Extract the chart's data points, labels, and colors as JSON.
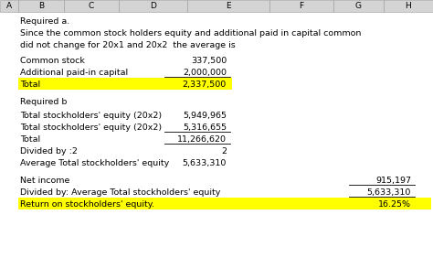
{
  "title_a": "Required a.",
  "subtitle_line1": "Since the common stock holders equity and additional paid in capital common",
  "subtitle_line2": "did not change for 20x1 and 20x2  the average is",
  "title_b": "Required b",
  "section_a_rows": [
    {
      "label": "Common stock",
      "value": "337,500",
      "highlight": false,
      "underline": false
    },
    {
      "label": "Additional paid-in capital",
      "value": "2,000,000",
      "highlight": false,
      "underline": true
    },
    {
      "label": "Total",
      "value": "2,337,500",
      "highlight": true,
      "underline": false
    }
  ],
  "section_b_rows": [
    {
      "label": "Total stockholders' equity (20x2)",
      "value": "5,949,965",
      "highlight": false,
      "underline": false
    },
    {
      "label": "Total stockholders' equity (20x2)",
      "value": "5,316,655",
      "highlight": false,
      "underline": true
    },
    {
      "label": "Total",
      "value": "11,266,620",
      "highlight": false,
      "underline": true
    },
    {
      "label": "Divided by :2",
      "value": "2",
      "highlight": false,
      "underline": false
    },
    {
      "label": "Average Total stockholders' equity",
      "value": "5,633,310",
      "highlight": false,
      "underline": false
    }
  ],
  "section_c_rows": [
    {
      "label": "Net income",
      "value": "915,197",
      "highlight": false,
      "underline": true
    },
    {
      "label": "Divided by: Average Total stockholders' equity",
      "value": "5,633,310",
      "highlight": false,
      "underline": true
    },
    {
      "label": "Return on stockholders' equity.",
      "value": "16.25%",
      "highlight": true,
      "underline": false
    }
  ],
  "bg_color": "#ffffff",
  "highlight_color": "#ffff00",
  "header_bg": "#d4d4d4",
  "font_size": 6.8,
  "header_font_size": 6.5
}
